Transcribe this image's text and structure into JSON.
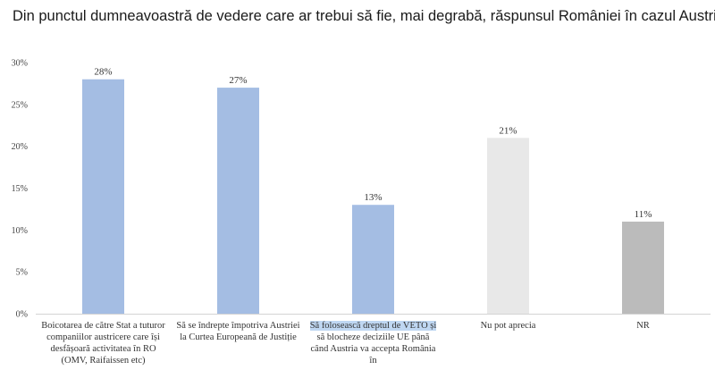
{
  "chart_data": {
    "type": "bar",
    "title": "Din punctul dumneavoastră de vedere care ar trebui să fie, mai degrabă, răspunsul României în cazul Austriei?",
    "categories": [
      "Boicotarea de către Stat a tuturor companiilor austricere care își desfășoară activitatea în RO (OMV, Raifaissen etc)",
      "Să se îndrepte împotriva Austriei la Curtea Europeană de Justiție",
      "Să folosească dreptul de VETO și să blocheze deciziile UE până când Austria va accepta România în",
      "Nu pot aprecia",
      "NR"
    ],
    "category_lines": [
      [
        "Boicotarea de către Stat a tuturor",
        "companiilor austricere care își",
        "desfășoară activitatea în RO",
        "(OMV, Raifaissen etc)"
      ],
      [
        "Să se îndrepte împotriva Austriei",
        "la Curtea Europeană de Justiție"
      ],
      [
        "Să folosească dreptul de VETO și",
        "să blocheze deciziile UE până",
        "când Austria va accepta România",
        "în"
      ],
      [
        "Nu pot aprecia"
      ],
      [
        "NR"
      ]
    ],
    "highlighted_line": {
      "category": 2,
      "line": 0
    },
    "values": [
      28,
      27,
      13,
      21,
      11
    ],
    "data_labels": [
      "28%",
      "27%",
      "13%",
      "21%",
      "11%"
    ],
    "colors": [
      "#a4bde3",
      "#a4bde3",
      "#a4bde3",
      "#e8e8e8",
      "#bbbbbb"
    ],
    "ylim": [
      0,
      30
    ],
    "yticks": [
      0,
      5,
      10,
      15,
      20,
      25,
      30
    ],
    "ytick_labels": [
      "0%",
      "5%",
      "10%",
      "15%",
      "20%",
      "25%",
      "30%"
    ],
    "grid": false,
    "legend": "none"
  }
}
